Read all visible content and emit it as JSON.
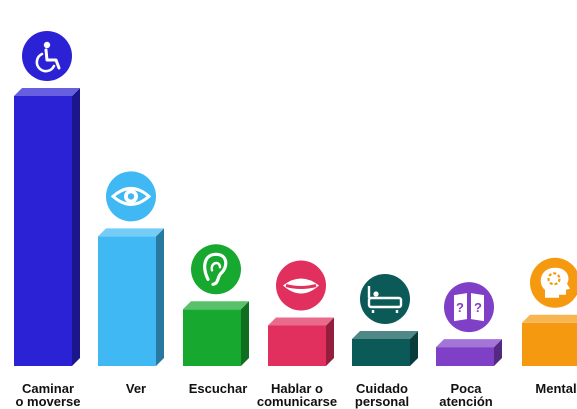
{
  "chart_data": {
    "type": "bar",
    "categories": [
      {
        "label_lines": [
          "Caminar",
          "o moverse"
        ],
        "value": 100,
        "color": "#2b22d6",
        "icon": "wheelchair-icon"
      },
      {
        "label_lines": [
          "Ver"
        ],
        "value": 48,
        "color": "#3fb8f4",
        "icon": "eye-icon"
      },
      {
        "label_lines": [
          "Escuchar"
        ],
        "value": 21,
        "color": "#17a92f",
        "icon": "ear-icon"
      },
      {
        "label_lines": [
          "Hablar o",
          "comunicarse"
        ],
        "value": 15,
        "color": "#e2305e",
        "icon": "mouth-icon"
      },
      {
        "label_lines": [
          "Cuidado",
          "personal"
        ],
        "value": 10,
        "color": "#0c5a58",
        "icon": "bath-icon"
      },
      {
        "label_lines": [
          "Poca",
          "atención"
        ],
        "value": 7,
        "color": "#7f3fc7",
        "icon": "attention-icon"
      },
      {
        "label_lines": [
          "Mental"
        ],
        "value": 16,
        "color": "#f59a10",
        "icon": "mental-head-icon"
      }
    ],
    "title": "",
    "xlabel": "",
    "ylabel": "",
    "ylim": [
      0,
      100
    ],
    "grid": false,
    "legend": "none"
  }
}
